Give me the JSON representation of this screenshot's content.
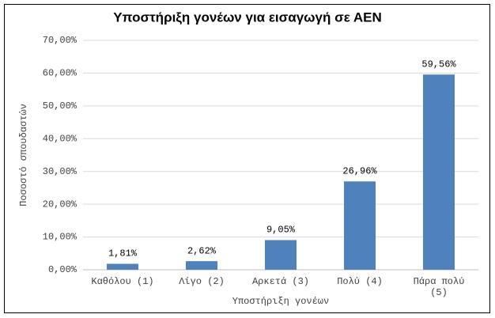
{
  "chart_data": {
    "type": "bar",
    "title": "Υποστήριξη  γονέων για εισαγωγή σε ΑΕΝ",
    "x_label": "Υποστήριξη γονέων",
    "y_label": "Ποσοστό σπουδαστών",
    "categories": [
      "Καθόλου (1)",
      "Λίγο (2)",
      "Αρκετά (3)",
      "Πολύ (4)",
      "Πάρα πολύ (5)"
    ],
    "values": [
      1.81,
      2.62,
      9.05,
      26.96,
      59.56
    ],
    "value_labels": [
      "1,81%",
      "2,62%",
      "9,05%",
      "26,96%",
      "59,56%"
    ],
    "color": "#4f81bd",
    "ylim": [
      0,
      70
    ],
    "yticks": [
      {
        "value": 0,
        "label": "0,00%"
      },
      {
        "value": 10,
        "label": "10,00%"
      },
      {
        "value": 20,
        "label": "20,00%"
      },
      {
        "value": 30,
        "label": "30,00%"
      },
      {
        "value": 40,
        "label": "40,00%"
      },
      {
        "value": 50,
        "label": "50,00%"
      },
      {
        "value": 60,
        "label": "60,00%"
      },
      {
        "value": 70,
        "label": "70,00%"
      }
    ],
    "grid": true
  }
}
